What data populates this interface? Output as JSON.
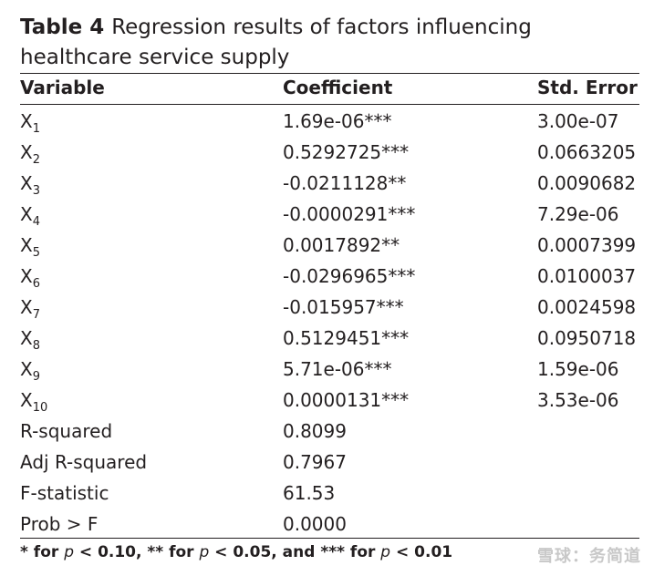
{
  "caption": {
    "label": "Table 4",
    "title": "Regression results of factors influencing healthcare service supply"
  },
  "headers": [
    "Variable",
    "Coefficient",
    "Std. Error"
  ],
  "rows": [
    {
      "var": "X",
      "sub": "1",
      "coef": "1.69e-06***",
      "se": "3.00e-07"
    },
    {
      "var": "X",
      "sub": "2",
      "coef": "0.5292725***",
      "se": "0.0663205"
    },
    {
      "var": "X",
      "sub": "3",
      "coef": "-0.0211128**",
      "se": "0.0090682"
    },
    {
      "var": "X",
      "sub": "4",
      "coef": "-0.0000291***",
      "se": "7.29e-06"
    },
    {
      "var": "X",
      "sub": "5",
      "coef": "0.0017892**",
      "se": "0.0007399"
    },
    {
      "var": "X",
      "sub": "6",
      "coef": "-0.0296965***",
      "se": "0.0100037"
    },
    {
      "var": "X",
      "sub": "7",
      "coef": "-0.015957***",
      "se": "0.0024598"
    },
    {
      "var": "X",
      "sub": "8",
      "coef": "0.5129451***",
      "se": "0.0950718"
    },
    {
      "var": "X",
      "sub": "9",
      "coef": "5.71e-06***",
      "se": "1.59e-06"
    },
    {
      "var": "X",
      "sub": "10",
      "coef": "0.0000131***",
      "se": "3.53e-06"
    },
    {
      "var": "R-squared",
      "sub": "",
      "coef": "0.8099",
      "se": ""
    },
    {
      "var": "Adj R-squared",
      "sub": "",
      "coef": "0.7967",
      "se": ""
    },
    {
      "var": "F-statistic",
      "sub": "",
      "coef": "61.53",
      "se": ""
    },
    {
      "var": "Prob > F",
      "sub": "",
      "coef": "0.0000",
      "se": ""
    }
  ],
  "footnote": {
    "parts": [
      "* for ",
      "p",
      " < 0.10, ** for ",
      "p",
      " < 0.05, and *** for ",
      "p",
      " < 0.01"
    ]
  },
  "watermark": "雪球：务简道"
}
